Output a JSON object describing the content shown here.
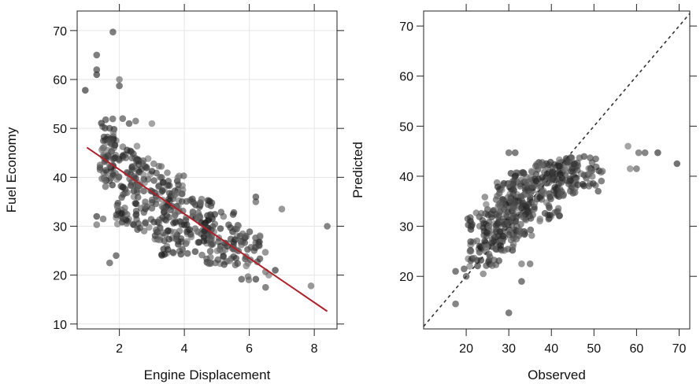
{
  "chart_data": [
    {
      "type": "scatter",
      "title": "",
      "xlabel": "Engine Displacement",
      "ylabel": "Fuel Economy",
      "xlim": [
        0.7,
        8.7
      ],
      "ylim": [
        9,
        74
      ],
      "xticks": [
        2,
        4,
        6,
        8
      ],
      "yticks": [
        10,
        20,
        30,
        40,
        50,
        60,
        70
      ],
      "grid": true,
      "fit_line": {
        "x": [
          1.0,
          8.4
        ],
        "y": [
          46.1,
          12.6
        ],
        "color": "#b0202a"
      },
      "clusters": [
        {
          "x": [
            1.4,
            1.9
          ],
          "y": [
            38,
            52
          ],
          "n": 70
        },
        {
          "x": [
            1.9,
            2.6
          ],
          "y": [
            30,
            47
          ],
          "n": 80
        },
        {
          "x": [
            2.5,
            3.3
          ],
          "y": [
            27,
            44
          ],
          "n": 70
        },
        {
          "x": [
            3.3,
            4.0
          ],
          "y": [
            24,
            41
          ],
          "n": 90
        },
        {
          "x": [
            4.0,
            4.9
          ],
          "y": [
            24,
            36
          ],
          "n": 70
        },
        {
          "x": [
            4.6,
            5.7
          ],
          "y": [
            22,
            33
          ],
          "n": 70
        },
        {
          "x": [
            5.5,
            6.5
          ],
          "y": [
            19,
            29
          ],
          "n": 40
        }
      ],
      "extra_points": [
        {
          "x": 0.95,
          "y": 57.8
        },
        {
          "x": 1.3,
          "y": 61
        },
        {
          "x": 1.3,
          "y": 62
        },
        {
          "x": 1.3,
          "y": 65
        },
        {
          "x": 1.8,
          "y": 69.7
        },
        {
          "x": 2.0,
          "y": 60
        },
        {
          "x": 2.0,
          "y": 58.7
        },
        {
          "x": 1.3,
          "y": 32
        },
        {
          "x": 1.3,
          "y": 30.3
        },
        {
          "x": 1.5,
          "y": 31.5
        },
        {
          "x": 1.7,
          "y": 22.5
        },
        {
          "x": 1.9,
          "y": 24
        },
        {
          "x": 2.1,
          "y": 52
        },
        {
          "x": 3.0,
          "y": 51
        },
        {
          "x": 2.3,
          "y": 51
        },
        {
          "x": 2.5,
          "y": 51.5
        },
        {
          "x": 6.2,
          "y": 35
        },
        {
          "x": 6.2,
          "y": 36
        },
        {
          "x": 7.0,
          "y": 33.5
        },
        {
          "x": 6.5,
          "y": 17.5
        },
        {
          "x": 6.6,
          "y": 20
        },
        {
          "x": 6.8,
          "y": 21
        },
        {
          "x": 7.9,
          "y": 17.8
        },
        {
          "x": 8.4,
          "y": 30
        }
      ]
    },
    {
      "type": "scatter",
      "title": "",
      "xlabel": "Observed",
      "ylabel": "Predicted",
      "xlim": [
        10,
        72.5
      ],
      "ylim": [
        9.5,
        73
      ],
      "xticks": [
        20,
        30,
        40,
        50,
        60,
        70
      ],
      "yticks": [
        20,
        30,
        40,
        50,
        60,
        70
      ],
      "grid": false,
      "reference_line": {
        "x": [
          10,
          72.5
        ],
        "y": [
          10,
          72.5
        ],
        "style": "dashed"
      },
      "clusters": [
        {
          "x": [
            20,
            28
          ],
          "y": [
            22,
            33
          ],
          "n": 70
        },
        {
          "x": [
            24,
            32
          ],
          "y": [
            25,
            36
          ],
          "n": 80
        },
        {
          "x": [
            27,
            36
          ],
          "y": [
            28,
            39
          ],
          "n": 100
        },
        {
          "x": [
            30,
            42
          ],
          "y": [
            31,
            41
          ],
          "n": 110
        },
        {
          "x": [
            35,
            46
          ],
          "y": [
            36,
            43
          ],
          "n": 80
        },
        {
          "x": [
            40,
            52
          ],
          "y": [
            38,
            44
          ],
          "n": 60
        }
      ],
      "extra_points": [
        {
          "x": 17.5,
          "y": 14.5
        },
        {
          "x": 17.5,
          "y": 21
        },
        {
          "x": 19.5,
          "y": 21.5
        },
        {
          "x": 20,
          "y": 20
        },
        {
          "x": 30,
          "y": 12.7
        },
        {
          "x": 33,
          "y": 19
        },
        {
          "x": 30,
          "y": 44.7
        },
        {
          "x": 31.5,
          "y": 44.7
        },
        {
          "x": 51,
          "y": 37
        },
        {
          "x": 52,
          "y": 41
        },
        {
          "x": 58,
          "y": 46
        },
        {
          "x": 58.5,
          "y": 41.5
        },
        {
          "x": 60,
          "y": 41.5
        },
        {
          "x": 60.5,
          "y": 44.7
        },
        {
          "x": 62,
          "y": 44.7
        },
        {
          "x": 65,
          "y": 44.7
        },
        {
          "x": 69.5,
          "y": 42.5
        },
        {
          "x": 33,
          "y": 22.5
        },
        {
          "x": 35,
          "y": 22.5
        },
        {
          "x": 24,
          "y": 20.5
        }
      ]
    }
  ]
}
